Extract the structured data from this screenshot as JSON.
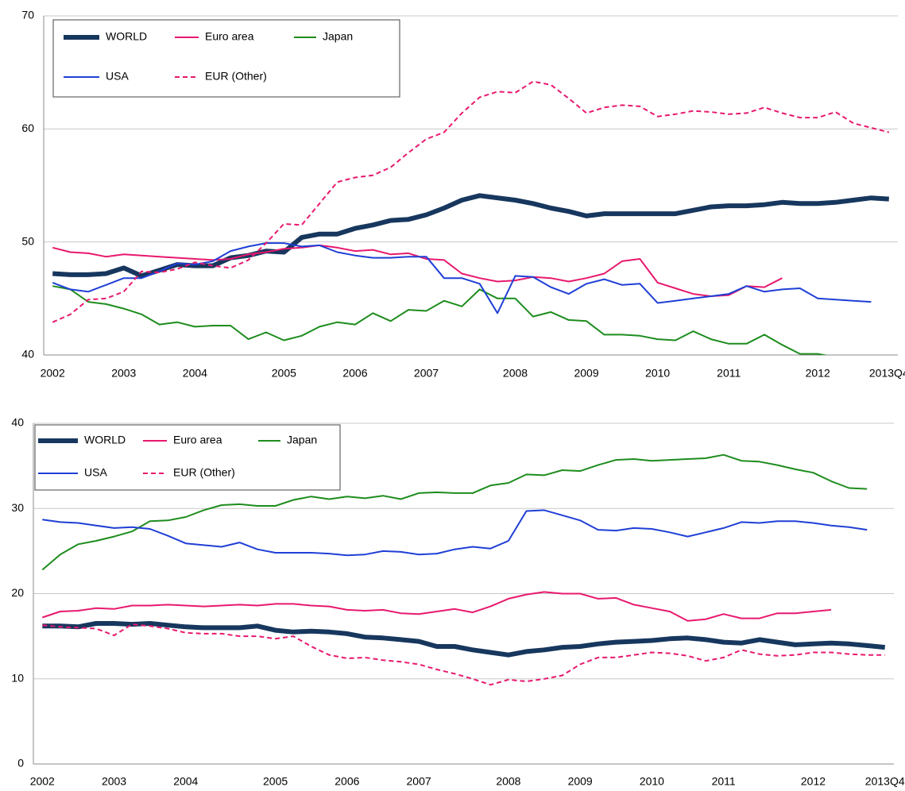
{
  "chart_data": [
    {
      "type": "line",
      "categories": [
        "2002",
        null,
        null,
        null,
        "2003",
        null,
        null,
        null,
        "2004",
        null,
        null,
        null,
        null,
        "2005",
        null,
        null,
        null,
        "2006",
        null,
        null,
        null,
        "2007",
        null,
        null,
        null,
        null,
        "2008",
        null,
        null,
        null,
        "2009",
        null,
        null,
        null,
        "2010",
        null,
        null,
        null,
        "2011",
        null,
        null,
        null,
        null,
        "2012",
        null,
        null,
        null,
        "2013Q4"
      ],
      "ylim": [
        40,
        70
      ],
      "yticks": [
        40,
        50,
        60,
        70
      ],
      "grid": true,
      "legend": "upper left",
      "series": [
        {
          "name": "WORLD",
          "color": "#17375e",
          "style": "bold",
          "values": [
            47.2,
            47.1,
            47.1,
            47.2,
            47.7,
            47.0,
            47.5,
            48.0,
            47.9,
            47.9,
            48.6,
            48.8,
            49.2,
            49.1,
            50.4,
            50.7,
            50.7,
            51.2,
            51.5,
            51.9,
            52.0,
            52.4,
            53.0,
            53.7,
            54.1,
            53.9,
            53.7,
            53.4,
            53.0,
            52.7,
            52.3,
            52.5,
            52.5,
            52.5,
            52.5,
            52.5,
            52.8,
            53.1,
            53.2,
            53.2,
            53.3,
            53.5,
            53.4,
            53.4,
            53.5,
            53.7,
            53.9,
            53.8
          ]
        },
        {
          "name": "Euro area",
          "color": "#e8196e",
          "style": "solid",
          "values": [
            49.5,
            49.1,
            49.0,
            48.7,
            48.9,
            48.8,
            48.7,
            48.6,
            48.5,
            48.4,
            48.5,
            48.9,
            49.1,
            49.4,
            49.5,
            49.7,
            49.5,
            49.2,
            49.3,
            48.9,
            49.0,
            48.5,
            48.4,
            47.2,
            46.8,
            46.5,
            46.6,
            46.9,
            46.8,
            46.5,
            46.8,
            47.2,
            48.3,
            48.5,
            46.4,
            45.9,
            45.4,
            45.2,
            45.3,
            46.1,
            46.0,
            46.8,
            null,
            null,
            null,
            null,
            null,
            null
          ]
        },
        {
          "name": "Japan",
          "color": "#1e8c1e",
          "style": "solid",
          "values": [
            46.1,
            45.8,
            44.7,
            44.5,
            44.1,
            43.6,
            42.7,
            42.9,
            42.5,
            42.6,
            42.6,
            41.4,
            42.0,
            41.3,
            41.7,
            42.5,
            42.9,
            42.7,
            43.7,
            43.0,
            44.0,
            43.9,
            44.8,
            44.3,
            45.8,
            45.0,
            45.0,
            43.4,
            43.8,
            43.1,
            43.0,
            41.8,
            41.8,
            41.7,
            41.4,
            41.3,
            42.1,
            41.4,
            41.0,
            41.0,
            41.8,
            40.9,
            40.1,
            40.1,
            39.8,
            39.6,
            39.4,
            39.2
          ]
        },
        {
          "name": "USA",
          "color": "#1f3fd6",
          "style": "solid",
          "values": [
            46.4,
            45.8,
            45.6,
            46.2,
            46.8,
            46.8,
            47.4,
            48.1,
            48.0,
            48.3,
            49.2,
            49.6,
            49.9,
            49.9,
            49.6,
            49.7,
            49.1,
            48.8,
            48.6,
            48.6,
            48.7,
            48.7,
            46.8,
            46.8,
            46.3,
            43.7,
            47.0,
            46.9,
            46.0,
            45.4,
            46.3,
            46.7,
            46.2,
            46.3,
            44.6,
            44.8,
            45.0,
            45.2,
            45.4,
            46.1,
            45.6,
            45.8,
            45.9,
            45.0,
            44.9,
            44.8,
            44.7,
            null
          ]
        },
        {
          "name": "EUR (Other)",
          "color": "#e8196e",
          "style": "dashed",
          "values": [
            42.9,
            43.6,
            44.9,
            45.0,
            45.6,
            47.4,
            47.3,
            47.6,
            48.2,
            47.9,
            47.7,
            48.4,
            49.9,
            51.6,
            51.5,
            53.4,
            55.3,
            55.7,
            55.9,
            56.6,
            57.9,
            59.1,
            59.7,
            61.4,
            62.8,
            63.3,
            63.2,
            64.2,
            63.9,
            62.7,
            61.4,
            61.9,
            62.1,
            62.0,
            61.1,
            61.3,
            61.6,
            61.5,
            61.3,
            61.4,
            61.9,
            61.4,
            61.0,
            61.0,
            61.5,
            60.5,
            60.1,
            59.7
          ]
        }
      ]
    },
    {
      "type": "line",
      "categories": [
        "2002",
        null,
        null,
        null,
        "2003",
        null,
        null,
        null,
        "2004",
        null,
        null,
        null,
        null,
        "2005",
        null,
        null,
        null,
        "2006",
        null,
        null,
        null,
        "2007",
        null,
        null,
        null,
        null,
        "2008",
        null,
        null,
        null,
        "2009",
        null,
        null,
        null,
        "2010",
        null,
        null,
        null,
        "2011",
        null,
        null,
        null,
        null,
        "2012",
        null,
        null,
        null,
        "2013Q4"
      ],
      "ylim": [
        0,
        40
      ],
      "yticks": [
        0,
        10,
        20,
        30,
        40
      ],
      "grid": true,
      "legend": "upper left",
      "series": [
        {
          "name": "WORLD",
          "color": "#17375e",
          "style": "bold",
          "values": [
            16.2,
            16.2,
            16.1,
            16.5,
            16.5,
            16.4,
            16.5,
            16.3,
            16.1,
            16.0,
            16.0,
            16.0,
            16.2,
            15.7,
            15.5,
            15.6,
            15.5,
            15.3,
            14.9,
            14.8,
            14.6,
            14.4,
            13.8,
            13.8,
            13.4,
            13.1,
            12.8,
            13.2,
            13.4,
            13.7,
            13.8,
            14.1,
            14.3,
            14.4,
            14.5,
            14.7,
            14.8,
            14.6,
            14.3,
            14.2,
            14.6,
            14.3,
            14.0,
            14.1,
            14.2,
            14.1,
            13.9,
            13.7
          ]
        },
        {
          "name": "Euro area",
          "color": "#e8196e",
          "style": "solid",
          "values": [
            17.2,
            17.9,
            18.0,
            18.3,
            18.2,
            18.6,
            18.6,
            18.7,
            18.6,
            18.5,
            18.6,
            18.7,
            18.6,
            18.8,
            18.8,
            18.6,
            18.5,
            18.1,
            18.0,
            18.1,
            17.7,
            17.6,
            17.9,
            18.2,
            17.8,
            18.5,
            19.4,
            19.9,
            20.2,
            20.0,
            20.0,
            19.4,
            19.5,
            18.7,
            18.3,
            17.9,
            16.8,
            17.0,
            17.6,
            17.1,
            17.1,
            17.7,
            17.7,
            17.9,
            18.1,
            null,
            null,
            null
          ]
        },
        {
          "name": "Japan",
          "color": "#1e8c1e",
          "style": "solid",
          "values": [
            22.8,
            24.6,
            25.8,
            26.2,
            26.7,
            27.3,
            28.5,
            28.6,
            29.0,
            29.8,
            30.4,
            30.5,
            30.3,
            30.3,
            31.0,
            31.4,
            31.1,
            31.4,
            31.2,
            31.5,
            31.1,
            31.8,
            31.9,
            31.8,
            31.8,
            32.7,
            33.0,
            34.0,
            33.9,
            34.5,
            34.4,
            35.1,
            35.7,
            35.8,
            35.6,
            35.7,
            35.8,
            35.9,
            36.3,
            35.6,
            35.5,
            35.1,
            34.6,
            34.2,
            33.2,
            32.4,
            32.3,
            null
          ]
        },
        {
          "name": "USA",
          "color": "#1f3fd6",
          "style": "solid",
          "values": [
            28.7,
            28.4,
            28.3,
            28.0,
            27.7,
            27.8,
            27.6,
            26.8,
            25.9,
            25.7,
            25.5,
            26.0,
            25.2,
            24.8,
            24.8,
            24.8,
            24.7,
            24.5,
            24.6,
            25.0,
            24.9,
            24.6,
            24.7,
            25.2,
            25.5,
            25.3,
            26.2,
            29.7,
            29.8,
            29.2,
            28.6,
            27.5,
            27.4,
            27.7,
            27.6,
            27.2,
            26.7,
            27.2,
            27.7,
            28.4,
            28.3,
            28.5,
            28.5,
            28.3,
            28.0,
            27.8,
            27.5,
            null
          ]
        },
        {
          "name": "EUR (Other)",
          "color": "#e8196e",
          "style": "dashed",
          "values": [
            16.3,
            16.1,
            16.0,
            15.9,
            15.1,
            16.4,
            16.2,
            15.9,
            15.4,
            15.3,
            15.3,
            15.0,
            15.0,
            14.7,
            15.0,
            13.8,
            12.8,
            12.4,
            12.5,
            12.2,
            12.0,
            11.7,
            11.1,
            10.6,
            10.0,
            9.3,
            9.9,
            9.7,
            10.0,
            10.4,
            11.7,
            12.5,
            12.5,
            12.8,
            13.1,
            13.0,
            12.7,
            12.1,
            12.5,
            13.4,
            12.9,
            12.7,
            12.8,
            13.1,
            13.1,
            12.9,
            12.8,
            12.8
          ]
        }
      ]
    }
  ]
}
